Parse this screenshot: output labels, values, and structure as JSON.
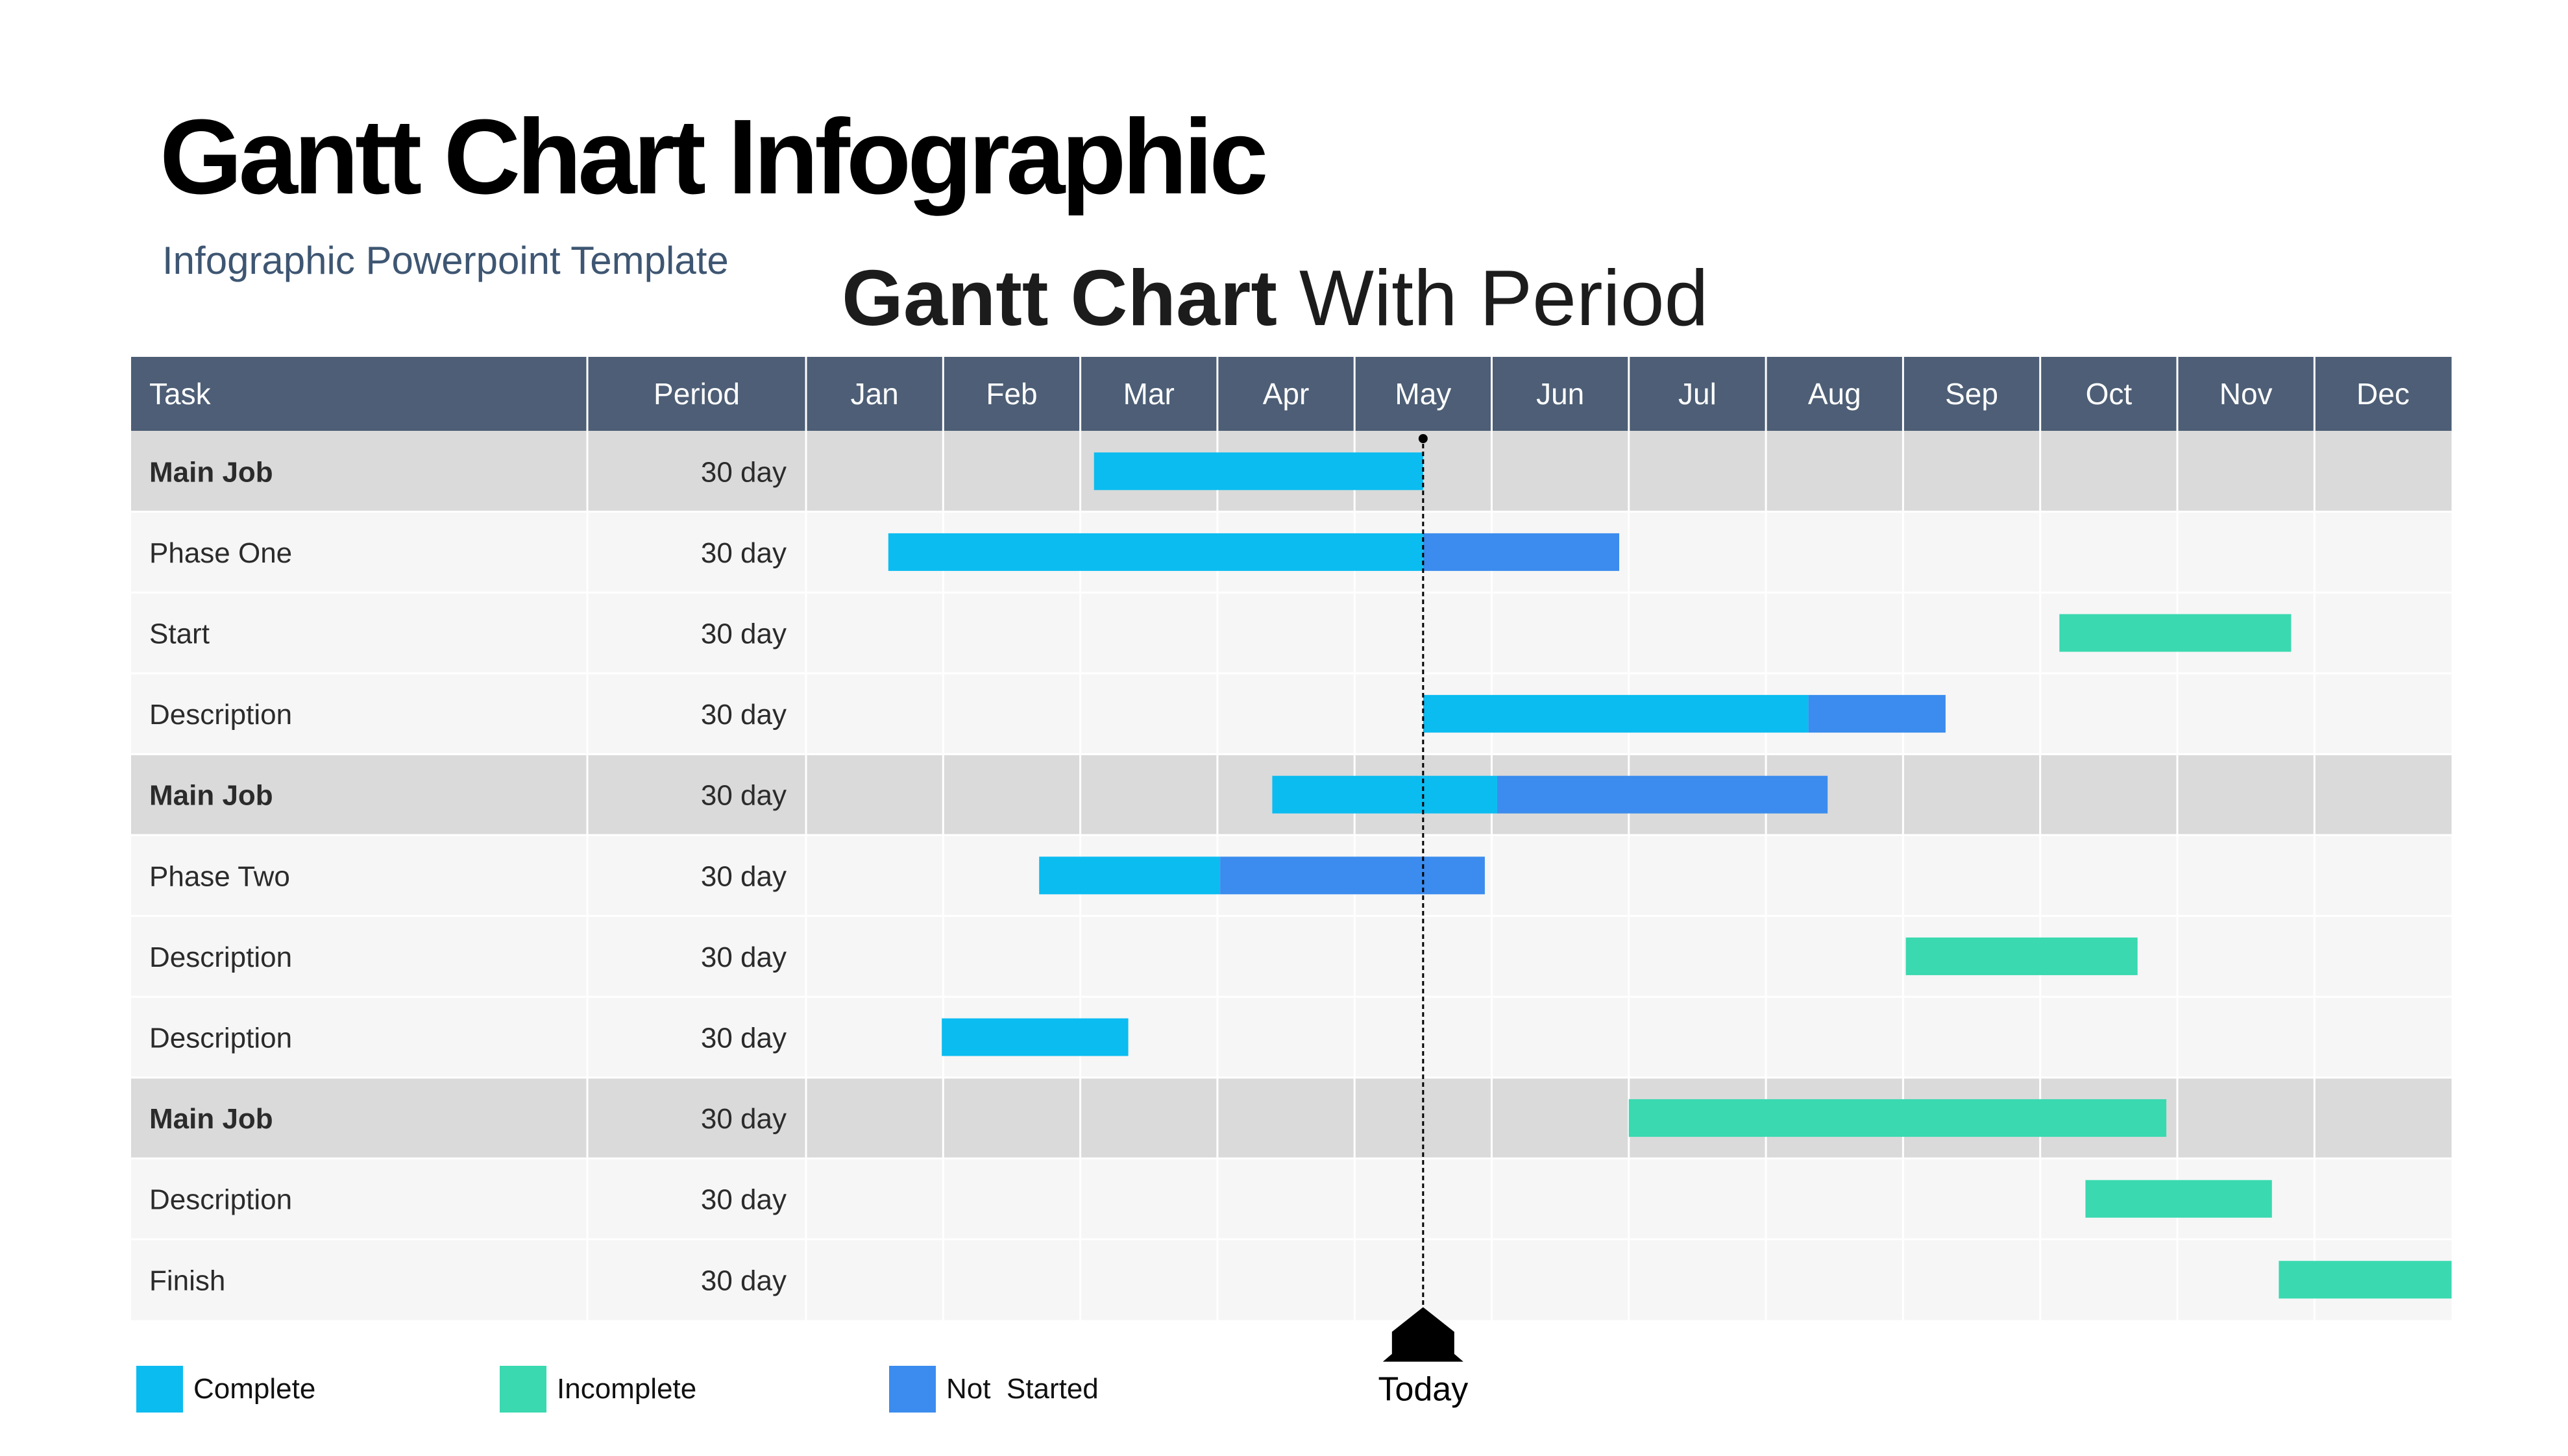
{
  "title": "Gantt Chart Infographic",
  "subtitle": "Infographic Powerpoint Template",
  "chart_title": {
    "bold": "Gantt Chart",
    "light": "With Period"
  },
  "colors": {
    "complete": "#0bbcf0",
    "incomplete": "#3ad9b0",
    "not_started": "#3b8cee",
    "header_bg": "#4d5e76",
    "main_row_bg": "#dadada",
    "row_bg": "#f6f6f6"
  },
  "chart_data": {
    "type": "gantt",
    "title": "Gantt Chart With Period",
    "columns": [
      "Task",
      "Period"
    ],
    "months": [
      "Jan",
      "Feb",
      "Mar",
      "Apr",
      "May",
      "Jun",
      "Jul",
      "Aug",
      "Sep",
      "Oct",
      "Nov",
      "Dec"
    ],
    "x_range": [
      0,
      12
    ],
    "today": 4.5,
    "today_label": "Today",
    "rows": [
      {
        "task": "Main Job",
        "period": "30 day",
        "main": true,
        "segments": [
          {
            "start": 2.1,
            "end": 4.5,
            "status": "complete"
          }
        ]
      },
      {
        "task": "Phase One",
        "period": "30 day",
        "main": false,
        "segments": [
          {
            "start": 0.6,
            "end": 4.5,
            "status": "complete"
          },
          {
            "start": 4.5,
            "end": 5.93,
            "status": "not_started"
          }
        ]
      },
      {
        "task": "Start",
        "period": "30 day",
        "main": false,
        "segments": [
          {
            "start": 9.14,
            "end": 10.83,
            "status": "incomplete"
          }
        ]
      },
      {
        "task": "Description",
        "period": "30 day",
        "main": false,
        "segments": [
          {
            "start": 4.5,
            "end": 7.31,
            "status": "complete"
          },
          {
            "start": 7.31,
            "end": 8.31,
            "status": "not_started"
          }
        ]
      },
      {
        "task": "Main Job",
        "period": "30 day",
        "main": true,
        "segments": [
          {
            "start": 3.4,
            "end": 5.04,
            "status": "complete"
          },
          {
            "start": 5.04,
            "end": 7.45,
            "status": "not_started"
          }
        ]
      },
      {
        "task": "Phase Two",
        "period": "30 day",
        "main": false,
        "segments": [
          {
            "start": 1.7,
            "end": 3.02,
            "status": "complete"
          },
          {
            "start": 3.02,
            "end": 4.95,
            "status": "not_started"
          }
        ]
      },
      {
        "task": "Description",
        "period": "30 day",
        "main": false,
        "segments": [
          {
            "start": 8.02,
            "end": 9.71,
            "status": "incomplete"
          }
        ]
      },
      {
        "task": "Description",
        "period": "30 day",
        "main": false,
        "segments": [
          {
            "start": 0.99,
            "end": 2.35,
            "status": "complete"
          }
        ]
      },
      {
        "task": "Main Job",
        "period": "30 day",
        "main": true,
        "segments": [
          {
            "start": 6.0,
            "end": 9.92,
            "status": "incomplete"
          }
        ]
      },
      {
        "task": "Description",
        "period": "30 day",
        "main": false,
        "segments": [
          {
            "start": 9.33,
            "end": 10.69,
            "status": "incomplete"
          }
        ]
      },
      {
        "task": "Finish",
        "period": "30 day",
        "main": false,
        "segments": [
          {
            "start": 10.74,
            "end": 12.0,
            "status": "incomplete"
          }
        ]
      }
    ],
    "legend": [
      {
        "key": "complete",
        "label": "Complete"
      },
      {
        "key": "incomplete",
        "label": "Incomplete"
      },
      {
        "key": "not_started",
        "label": "Not  Started"
      }
    ]
  }
}
